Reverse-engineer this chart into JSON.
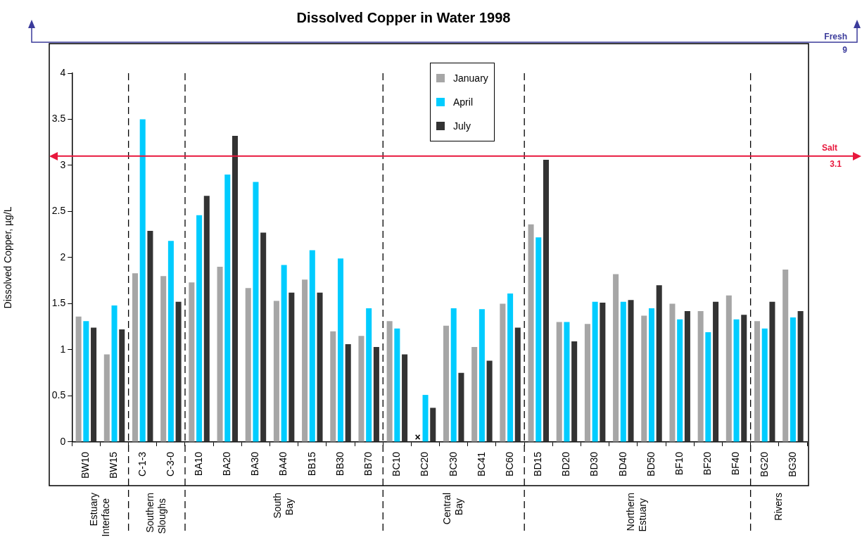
{
  "chart_data": {
    "type": "bar",
    "title": "Dissolved Copper in Water 1998",
    "ylabel": "Dissolved Copper, µg/L",
    "categories": [
      "BW10",
      "BW15",
      "C-1-3",
      "C-3-0",
      "BA10",
      "BA20",
      "BA30",
      "BA40",
      "BB15",
      "BB30",
      "BB70",
      "BC10",
      "BC20",
      "BC30",
      "BC41",
      "BC60",
      "BD15",
      "BD20",
      "BD30",
      "BD40",
      "BD50",
      "BF10",
      "BF20",
      "BF40",
      "BG20",
      "BG30"
    ],
    "series": [
      {
        "name": "January",
        "color": "#a6a6a6",
        "values": [
          1.36,
          0.95,
          1.83,
          1.8,
          1.73,
          1.9,
          1.67,
          1.53,
          1.76,
          1.2,
          1.15,
          1.31,
          null,
          1.26,
          1.03,
          1.5,
          2.36,
          1.3,
          1.28,
          1.82,
          1.37,
          1.5,
          1.42,
          1.59,
          1.31,
          1.87
        ]
      },
      {
        "name": "April",
        "color": "#00ccff",
        "values": [
          1.31,
          1.48,
          3.5,
          2.18,
          2.46,
          2.9,
          2.82,
          1.92,
          2.08,
          1.99,
          1.45,
          1.23,
          0.51,
          1.45,
          1.44,
          1.61,
          2.22,
          1.3,
          1.52,
          1.52,
          1.45,
          1.33,
          1.19,
          1.33,
          1.23,
          1.35
        ]
      },
      {
        "name": "July",
        "color": "#333333",
        "values": [
          1.24,
          1.22,
          2.29,
          1.52,
          2.67,
          3.32,
          2.27,
          1.62,
          1.62,
          1.06,
          1.03,
          0.95,
          0.37,
          0.75,
          0.88,
          1.24,
          3.06,
          1.09,
          1.51,
          1.54,
          1.7,
          1.42,
          1.52,
          1.38,
          1.52,
          1.42
        ]
      }
    ],
    "ylim": [
      0,
      4
    ],
    "yticks": [
      0,
      0.5,
      1,
      1.5,
      2,
      2.5,
      3,
      3.5,
      4
    ],
    "grid": false,
    "legend": "top",
    "ref_lines": [
      {
        "axis": "y",
        "value": 3.1,
        "label": "Salt 3.1",
        "color": "#e8173c"
      }
    ],
    "annotations": [
      {
        "text": "×",
        "x": "BC20",
        "y": 0
      },
      "Fresh",
      "9",
      "Estuary Interface",
      "Southern Sloughs",
      "South Bay",
      "Central Bay",
      "Northern Estuary",
      "Rivers"
    ]
  }
}
